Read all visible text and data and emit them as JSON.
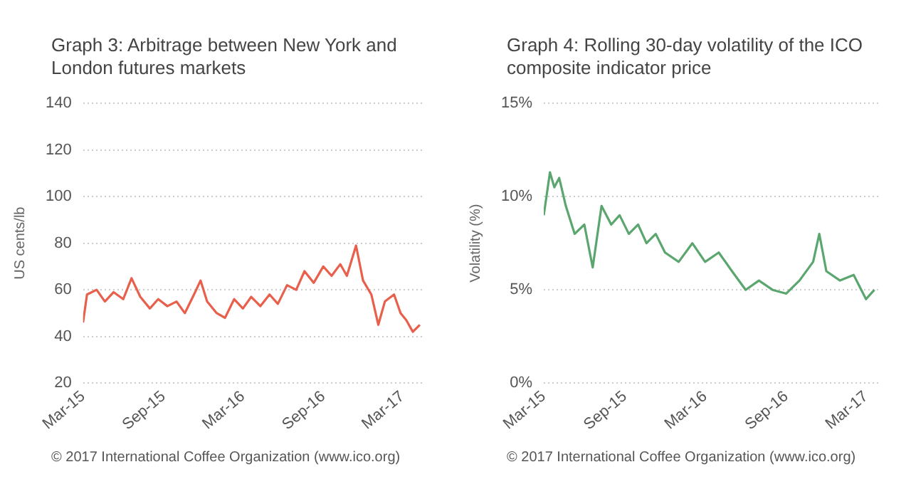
{
  "chart_data": [
    {
      "type": "line",
      "title": "Graph 3: Arbitrage between New York and London futures markets",
      "ylabel": "US cents/lb",
      "annotations": [
        "© 2017 International Coffee Organization (www.ico.org)"
      ],
      "x": [
        "2015-03-01",
        "2015-03-10",
        "2015-04-01",
        "2015-04-20",
        "2015-05-10",
        "2015-06-01",
        "2015-06-20",
        "2015-07-10",
        "2015-08-01",
        "2015-08-20",
        "2015-09-10",
        "2015-10-01",
        "2015-10-20",
        "2015-11-10",
        "2015-11-25",
        "2015-12-10",
        "2016-01-01",
        "2016-01-20",
        "2016-02-10",
        "2016-03-01",
        "2016-03-20",
        "2016-04-10",
        "2016-05-01",
        "2016-05-20",
        "2016-06-10",
        "2016-07-01",
        "2016-07-20",
        "2016-08-10",
        "2016-09-01",
        "2016-09-20",
        "2016-10-10",
        "2016-10-25",
        "2016-11-15",
        "2016-12-01",
        "2016-12-20",
        "2017-01-05",
        "2017-01-20",
        "2017-02-10",
        "2017-02-25",
        "2017-03-10",
        "2017-03-25",
        "2017-04-10"
      ],
      "series": [
        {
          "color": "#e8604c",
          "values": [
            46,
            58,
            60,
            55,
            59,
            56,
            65,
            57,
            52,
            56,
            53,
            55,
            50,
            58,
            64,
            55,
            50,
            48,
            56,
            52,
            57,
            53,
            58,
            54,
            62,
            60,
            68,
            63,
            70,
            66,
            71,
            66,
            79,
            64,
            58,
            45,
            55,
            58,
            50,
            47,
            42,
            45
          ]
        }
      ],
      "xlim": [
        "2015-03-01",
        "2017-04-20"
      ],
      "xticks": [
        {
          "value": "2015-03-01",
          "label": "Mar-15"
        },
        {
          "value": "2015-09-01",
          "label": "Sep-15"
        },
        {
          "value": "2016-03-01",
          "label": "Mar-16"
        },
        {
          "value": "2016-09-01",
          "label": "Sep-16"
        },
        {
          "value": "2017-03-01",
          "label": "Mar-17"
        }
      ],
      "ylim": [
        20,
        140
      ],
      "yticks": [
        20,
        40,
        60,
        80,
        100,
        120,
        140
      ],
      "grid": "y",
      "legend": false,
      "marker": "none",
      "line_style": "solid"
    },
    {
      "type": "line",
      "title": "Graph 4: Rolling 30-day volatility of the ICO composite indicator price",
      "ylabel": "Volatility (%)",
      "annotations": [
        "© 2017 International Coffee Organization (www.ico.org)"
      ],
      "x": [
        "2015-03-01",
        "2015-03-15",
        "2015-03-25",
        "2015-04-05",
        "2015-04-20",
        "2015-05-10",
        "2015-06-01",
        "2015-06-20",
        "2015-07-10",
        "2015-08-01",
        "2015-08-20",
        "2015-09-10",
        "2015-10-01",
        "2015-10-20",
        "2015-11-10",
        "2015-12-01",
        "2016-01-01",
        "2016-02-01",
        "2016-03-01",
        "2016-04-01",
        "2016-05-01",
        "2016-06-01",
        "2016-07-01",
        "2016-08-01",
        "2016-09-01",
        "2016-10-01",
        "2016-11-01",
        "2016-11-15",
        "2016-12-01",
        "2017-01-01",
        "2017-02-01",
        "2017-03-01",
        "2017-03-20"
      ],
      "series": [
        {
          "color": "#5aa66e",
          "values": [
            9,
            11.3,
            10.5,
            11,
            9.5,
            8,
            8.5,
            6.2,
            9.5,
            8.5,
            9,
            8,
            8.5,
            7.5,
            8,
            7,
            6.5,
            7.5,
            6.5,
            7,
            6,
            5,
            5.5,
            5,
            4.8,
            5.5,
            6.5,
            8,
            6,
            5.5,
            5.8,
            4.5,
            5
          ]
        }
      ],
      "xlim": [
        "2015-03-01",
        "2017-04-01"
      ],
      "xticks": [
        {
          "value": "2015-03-01",
          "label": "Mar-15"
        },
        {
          "value": "2015-09-01",
          "label": "Sep-15"
        },
        {
          "value": "2016-03-01",
          "label": "Mar-16"
        },
        {
          "value": "2016-09-01",
          "label": "Sep-16"
        },
        {
          "value": "2017-03-01",
          "label": "Mar-17"
        }
      ],
      "ylim": [
        0,
        15
      ],
      "yticks": [
        {
          "value": 0,
          "label": "0%"
        },
        {
          "value": 5,
          "label": "5%"
        },
        {
          "value": 10,
          "label": "10%"
        },
        {
          "value": 15,
          "label": "15%"
        }
      ],
      "grid": "y",
      "legend": false,
      "marker": "none",
      "line_style": "solid"
    }
  ]
}
